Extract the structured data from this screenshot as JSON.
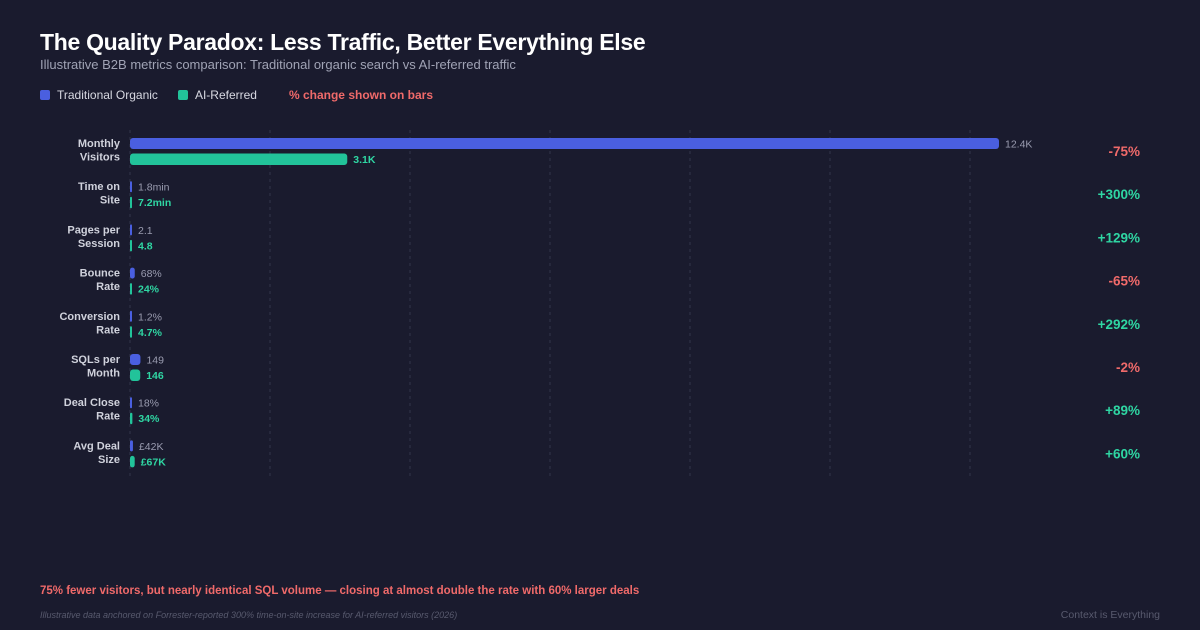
{
  "title": "The Quality Paradox: Less Traffic, Better Everything Else",
  "subtitle": "Illustrative B2B metrics comparison: Traditional organic search vs AI-referred traffic",
  "legend_note": "% change shown on bars",
  "insight": "75% fewer visitors, but nearly identical SQL volume — closing at almost double the rate with 60% larger deals",
  "source": "Illustrative data anchored on Forrester-reported 300% time-on-site increase for AI-referred visitors (2026)",
  "brand": "Context is Everything",
  "colors": {
    "traditional": "#4a5fe0",
    "ai": "#22c39a",
    "negative": "#f06a6a",
    "positive": "#2fd6a3",
    "grid": "#33354a"
  },
  "chart_data": {
    "type": "bar",
    "orientation": "horizontal",
    "grid": true,
    "legend": "top-left",
    "xlim": [
      0,
      12400
    ],
    "categories": [
      [
        "Monthly",
        "Visitors"
      ],
      [
        "Time on",
        "Site"
      ],
      [
        "Pages per",
        "Session"
      ],
      [
        "Bounce",
        "Rate"
      ],
      [
        "Conversion",
        "Rate"
      ],
      [
        "SQLs per",
        "Month"
      ],
      [
        "Deal Close",
        "Rate"
      ],
      [
        "Avg Deal",
        "Size"
      ]
    ],
    "series": [
      {
        "name": "Traditional Organic",
        "values": [
          12400,
          1.8,
          2.1,
          68,
          1.2,
          149,
          18,
          42
        ],
        "labels": [
          "12.4K",
          "1.8min",
          "2.1",
          "68%",
          "1.2%",
          "149",
          "18%",
          "£42K"
        ]
      },
      {
        "name": "AI-Referred",
        "values": [
          3100,
          7.2,
          4.8,
          24,
          4.7,
          146,
          34,
          67
        ],
        "labels": [
          "3.1K",
          "7.2min",
          "4.8",
          "24%",
          "4.7%",
          "146",
          "34%",
          "£67K"
        ]
      }
    ],
    "changes": [
      "-75%",
      "+300%",
      "+129%",
      "-65%",
      "+292%",
      "-2%",
      "+89%",
      "+60%"
    ]
  }
}
